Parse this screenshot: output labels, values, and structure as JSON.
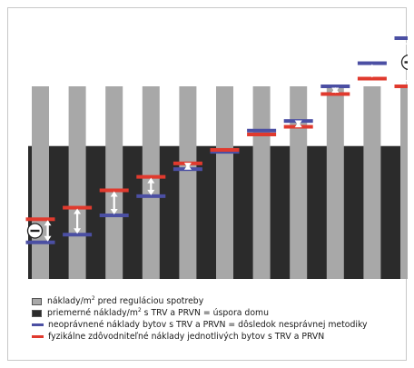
{
  "chart_data": {
    "type": "bar",
    "n_bars": 11,
    "ylim": [
      0,
      100
    ],
    "gray_bar_values": [
      100,
      100,
      100,
      100,
      100,
      100,
      100,
      100,
      100,
      100,
      100
    ],
    "average_value": 69,
    "blue_values": [
      19,
      23,
      33,
      43,
      57,
      66,
      77,
      82,
      100,
      112,
      125
    ],
    "red_values": [
      31,
      37,
      46,
      53,
      60,
      67,
      75,
      79,
      96,
      104,
      100
    ],
    "arrow_bars": [
      0,
      1,
      2,
      3,
      4,
      7,
      8,
      9,
      10
    ],
    "minus_marker_bar": 0,
    "plus_marker_bar": 10,
    "colors": {
      "gray_bar": "#a8a8a8",
      "dark_band": "#2b2b2b",
      "blue": "#4b4fa3",
      "red": "#e03a2e"
    },
    "legend": [
      {
        "kind": "box",
        "color": "#a8a8a8",
        "pre": "náklady/m",
        "sup": "2",
        "post": " pred reguláciou spotreby"
      },
      {
        "kind": "box",
        "color": "#2b2b2b",
        "pre": "priemerné náklady/m",
        "sup": "2",
        "post": " s TRV a PRVN = úspora domu"
      },
      {
        "kind": "line",
        "color": "#4b4fa3",
        "pre": "neoprávnené náklady bytov s TRV a PRVN = dôsledok nesprávnej metodiky",
        "sup": "",
        "post": ""
      },
      {
        "kind": "line",
        "color": "#e03a2e",
        "pre": "fyzikálne zdôvodniteľné náklady jednotlivých bytov s TRV a PRVN",
        "sup": "",
        "post": ""
      }
    ]
  }
}
